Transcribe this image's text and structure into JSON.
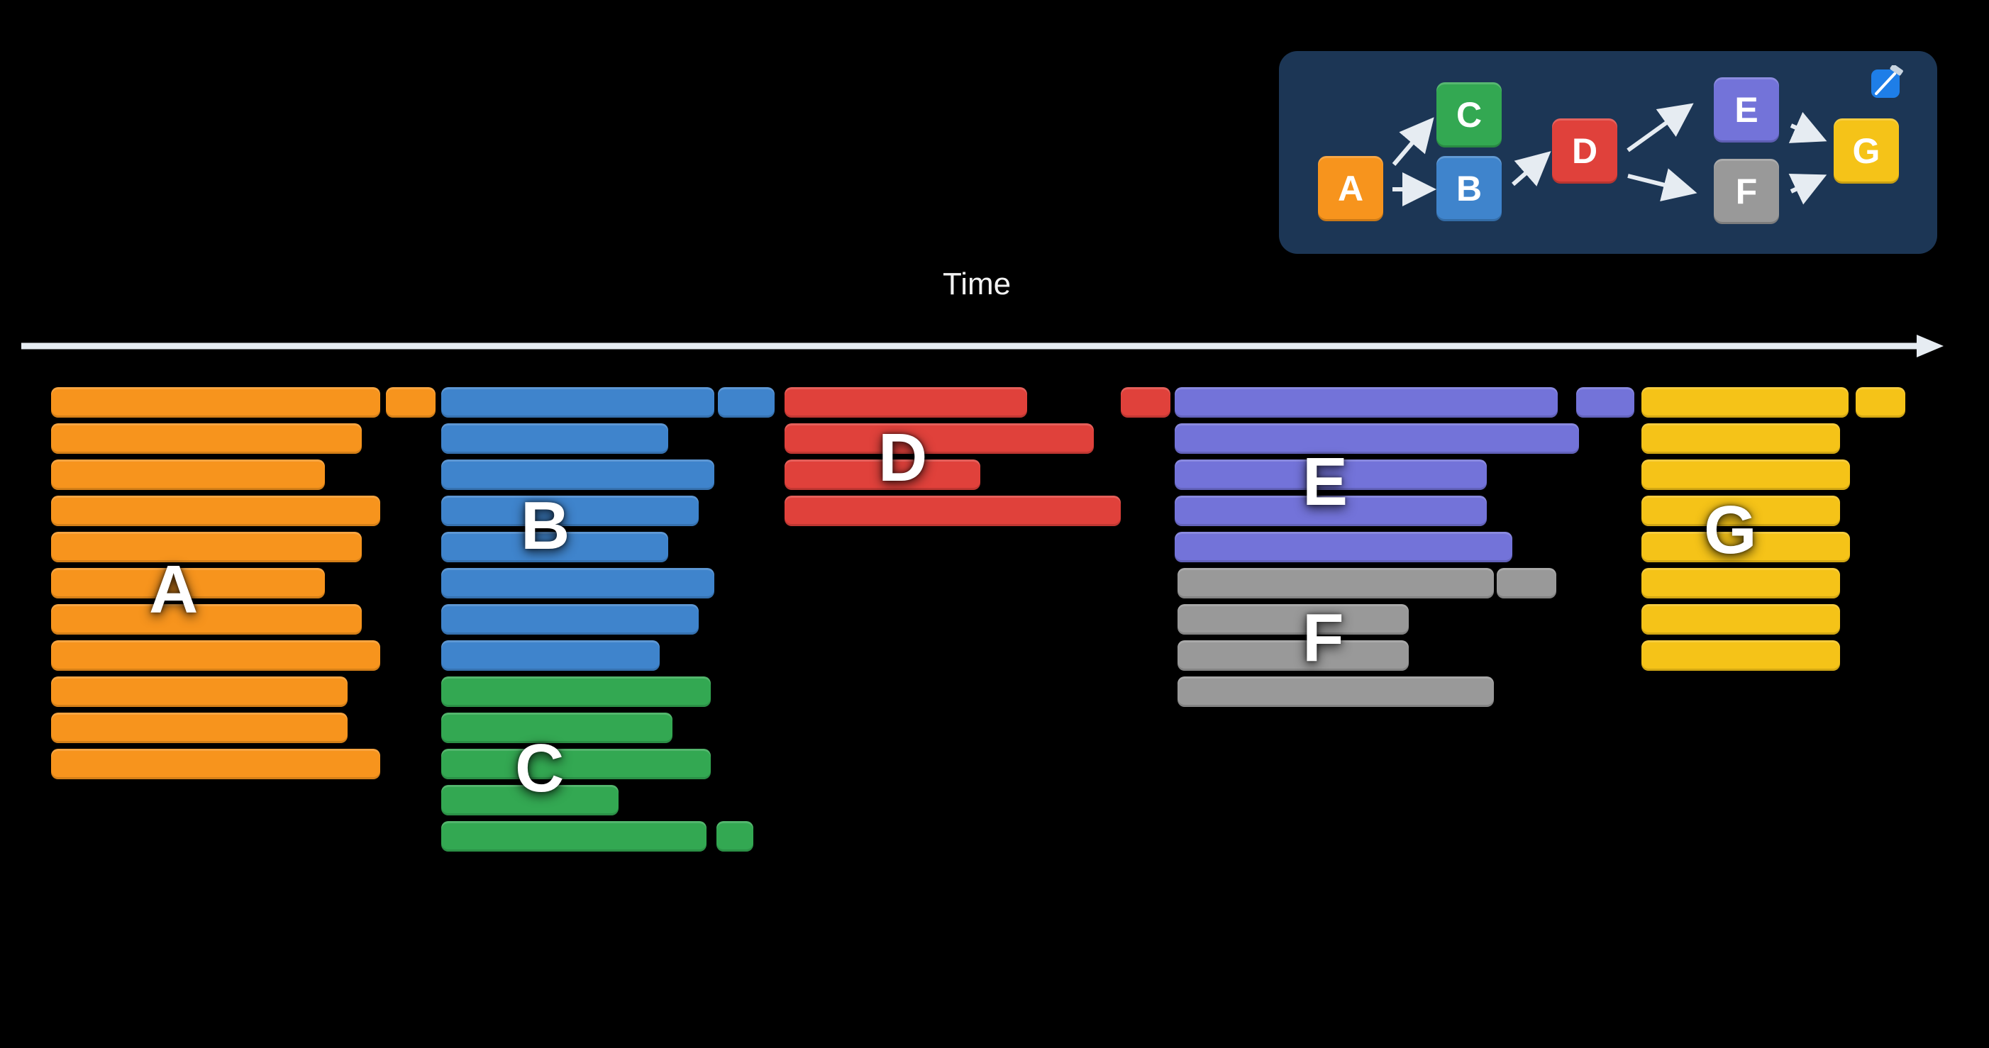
{
  "axis": {
    "label": "Time"
  },
  "colors": {
    "A": "#f7941d",
    "B": "#3f84cc",
    "C": "#33a852",
    "D": "#e0413b",
    "E": "#7373d9",
    "F": "#999999",
    "G": "#f5c318",
    "panel": "#1c3655",
    "arrow": "#e6ecf2"
  },
  "groups": [
    {
      "id": "A",
      "label": "A",
      "color_key": "A"
    },
    {
      "id": "B",
      "label": "B",
      "color_key": "B"
    },
    {
      "id": "C",
      "label": "C",
      "color_key": "C"
    },
    {
      "id": "D",
      "label": "D",
      "color_key": "D"
    },
    {
      "id": "E",
      "label": "E",
      "color_key": "E"
    },
    {
      "id": "F",
      "label": "F",
      "color_key": "F"
    },
    {
      "id": "G",
      "label": "G",
      "color_key": "G"
    }
  ],
  "dependency_graph": {
    "nodes": [
      {
        "id": "A",
        "label": "A"
      },
      {
        "id": "B",
        "label": "B"
      },
      {
        "id": "C",
        "label": "C"
      },
      {
        "id": "D",
        "label": "D"
      },
      {
        "id": "E",
        "label": "E"
      },
      {
        "id": "F",
        "label": "F"
      },
      {
        "id": "G",
        "label": "G"
      }
    ],
    "edges": [
      [
        "A",
        "C"
      ],
      [
        "A",
        "B"
      ],
      [
        "B",
        "D"
      ],
      [
        "D",
        "E"
      ],
      [
        "D",
        "F"
      ],
      [
        "E",
        "G"
      ],
      [
        "F",
        "G"
      ]
    ]
  },
  "app_icon": "xcode-hammer-icon"
}
